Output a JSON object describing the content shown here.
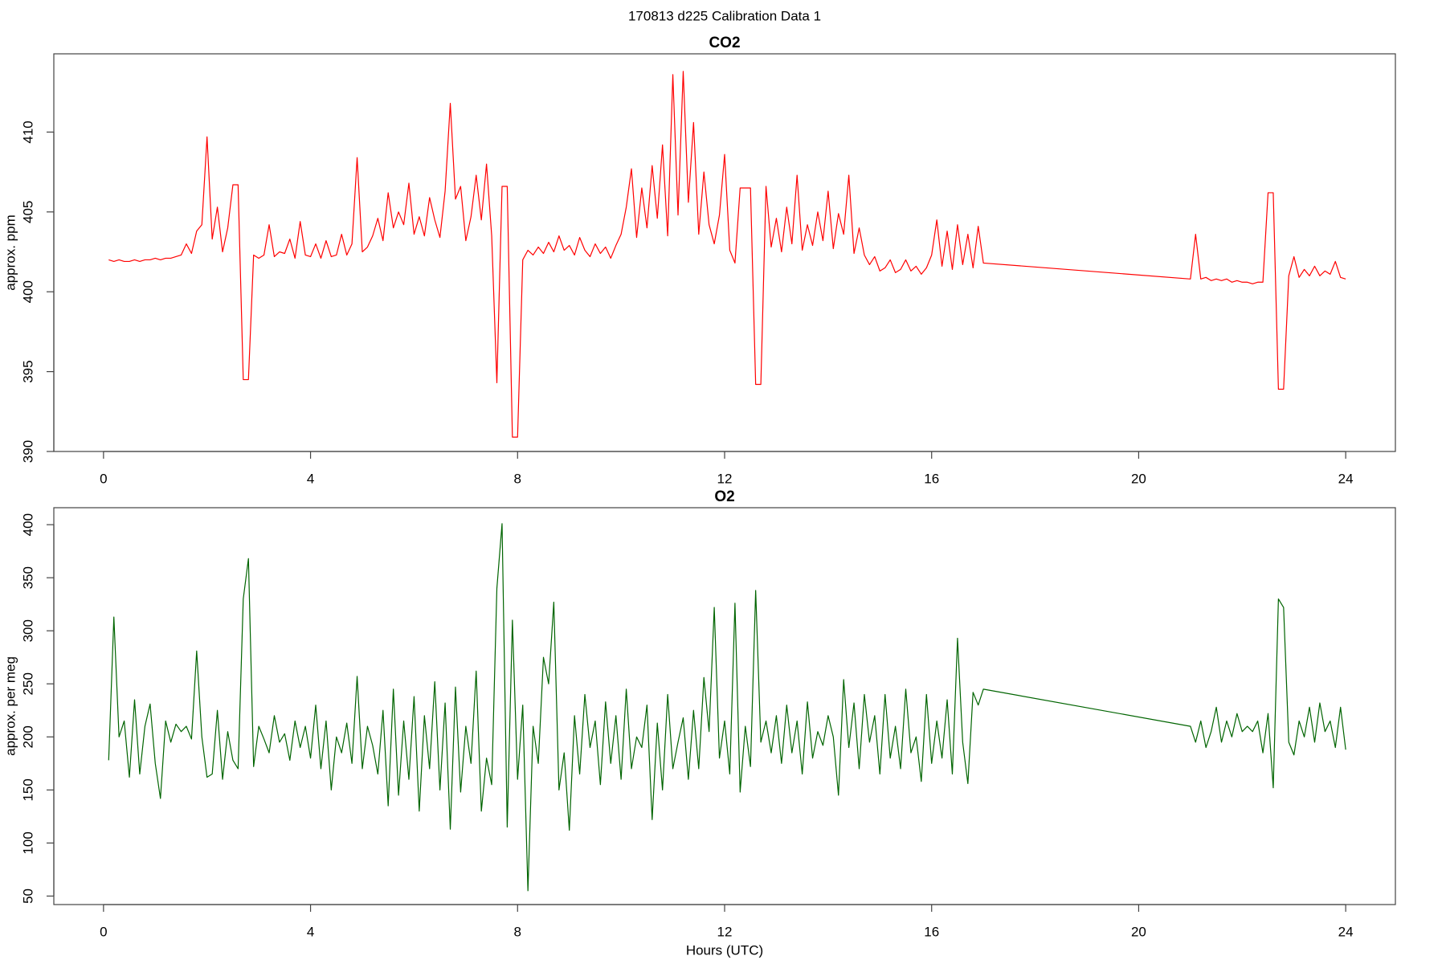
{
  "title": "170813   d225   Calibration Data 1",
  "chart_data": [
    {
      "type": "line",
      "title": "CO2",
      "ylabel": "approx. ppm",
      "color": "#ff0000",
      "xlim": [
        -0.96,
        24.96
      ],
      "xticks": [
        0,
        4,
        8,
        12,
        16,
        20,
        24
      ],
      "ylim": [
        390,
        414.9
      ],
      "yticks": [
        390,
        395,
        400,
        405,
        410
      ],
      "x": [
        0.1,
        0.2,
        0.3,
        0.4,
        0.5,
        0.6,
        0.7,
        0.8,
        0.9,
        1.0,
        1.1,
        1.2,
        1.3,
        1.4,
        1.5,
        1.6,
        1.7,
        1.8,
        1.9,
        2.0,
        2.1,
        2.2,
        2.3,
        2.4,
        2.5,
        2.6,
        2.7,
        2.8,
        2.9,
        3.0,
        3.1,
        3.2,
        3.3,
        3.4,
        3.5,
        3.6,
        3.7,
        3.8,
        3.9,
        4.0,
        4.1,
        4.2,
        4.3,
        4.4,
        4.5,
        4.6,
        4.7,
        4.8,
        4.9,
        5.0,
        5.1,
        5.2,
        5.3,
        5.4,
        5.5,
        5.6,
        5.7,
        5.8,
        5.9,
        6.0,
        6.1,
        6.2,
        6.3,
        6.4,
        6.5,
        6.6,
        6.7,
        6.8,
        6.9,
        7.0,
        7.1,
        7.2,
        7.3,
        7.4,
        7.5,
        7.6,
        7.7,
        7.8,
        7.9,
        8.0,
        8.1,
        8.2,
        8.3,
        8.4,
        8.5,
        8.6,
        8.7,
        8.8,
        8.9,
        9.0,
        9.1,
        9.2,
        9.3,
        9.4,
        9.5,
        9.6,
        9.7,
        9.8,
        9.9,
        10.0,
        10.1,
        10.2,
        10.3,
        10.4,
        10.5,
        10.6,
        10.7,
        10.8,
        10.9,
        11.0,
        11.1,
        11.2,
        11.3,
        11.4,
        11.5,
        11.6,
        11.7,
        11.8,
        11.9,
        12.0,
        12.1,
        12.2,
        12.3,
        12.4,
        12.5,
        12.6,
        12.7,
        12.8,
        12.9,
        13.0,
        13.1,
        13.2,
        13.3,
        13.4,
        13.5,
        13.6,
        13.7,
        13.8,
        13.9,
        14.0,
        14.1,
        14.2,
        14.3,
        14.4,
        14.5,
        14.6,
        14.7,
        14.8,
        14.9,
        15.0,
        15.1,
        15.2,
        15.3,
        15.4,
        15.5,
        15.6,
        15.7,
        15.8,
        15.9,
        16.0,
        16.1,
        16.2,
        16.3,
        16.4,
        16.5,
        16.6,
        16.7,
        16.8,
        16.9,
        17.0,
        21.0,
        21.1,
        21.2,
        21.3,
        21.4,
        21.5,
        21.6,
        21.7,
        21.8,
        21.9,
        22.0,
        22.1,
        22.2,
        22.3,
        22.4,
        22.5,
        22.6,
        22.7,
        22.8,
        22.9,
        23.0,
        23.1,
        23.2,
        23.3,
        23.4,
        23.5,
        23.6,
        23.7,
        23.8,
        23.9,
        24.0
      ],
      "values": [
        402.0,
        401.9,
        402.0,
        401.9,
        401.9,
        402.0,
        401.9,
        402.0,
        402.0,
        402.1,
        402.0,
        402.1,
        402.1,
        402.2,
        402.3,
        403.0,
        402.4,
        403.8,
        404.2,
        409.7,
        403.3,
        405.3,
        402.5,
        404.0,
        406.7,
        406.7,
        394.5,
        394.5,
        402.3,
        402.1,
        402.3,
        404.2,
        402.2,
        402.5,
        402.4,
        403.3,
        402.1,
        404.4,
        402.3,
        402.2,
        403.0,
        402.1,
        403.2,
        402.2,
        402.3,
        403.6,
        402.3,
        403.0,
        408.4,
        402.5,
        402.8,
        403.5,
        404.6,
        403.2,
        406.2,
        404.0,
        405.0,
        404.2,
        406.8,
        403.6,
        404.7,
        403.5,
        405.9,
        404.5,
        403.4,
        406.3,
        411.8,
        405.8,
        406.6,
        403.2,
        404.7,
        407.3,
        404.5,
        408.0,
        403.5,
        394.3,
        406.6,
        406.6,
        390.9,
        390.9,
        402.0,
        402.6,
        402.3,
        402.8,
        402.4,
        403.1,
        402.5,
        403.5,
        402.6,
        402.9,
        402.3,
        403.4,
        402.6,
        402.2,
        403.0,
        402.4,
        402.8,
        402.1,
        402.9,
        403.6,
        405.3,
        407.7,
        403.4,
        406.5,
        404.0,
        407.9,
        404.6,
        409.2,
        403.5,
        413.6,
        404.8,
        413.8,
        405.6,
        410.6,
        403.6,
        407.5,
        404.2,
        403.0,
        404.8,
        408.6,
        402.6,
        401.8,
        406.5,
        406.5,
        406.5,
        394.2,
        394.2,
        406.6,
        402.8,
        404.6,
        402.5,
        405.3,
        403.0,
        407.3,
        402.6,
        404.2,
        402.9,
        405.0,
        403.2,
        406.3,
        402.7,
        404.9,
        403.6,
        407.3,
        402.4,
        404.0,
        402.3,
        401.7,
        402.2,
        401.3,
        401.5,
        402.0,
        401.2,
        401.4,
        402.0,
        401.3,
        401.6,
        401.1,
        401.5,
        402.3,
        404.5,
        401.6,
        403.8,
        401.4,
        404.2,
        401.7,
        403.6,
        401.5,
        404.1,
        401.8,
        400.8,
        403.6,
        400.8,
        400.9,
        400.7,
        400.8,
        400.7,
        400.8,
        400.6,
        400.7,
        400.6,
        400.6,
        400.5,
        400.6,
        400.6,
        406.2,
        406.2,
        393.9,
        393.9,
        401.0,
        402.2,
        400.9,
        401.4,
        401.0,
        401.6,
        401.0,
        401.3,
        401.1,
        401.9,
        400.9,
        400.8
      ]
    },
    {
      "type": "line",
      "title": "O2",
      "ylabel": "approx. per meg",
      "xlabel": "Hours (UTC)",
      "color": "#006400",
      "xlim": [
        -0.96,
        24.96
      ],
      "xticks": [
        0,
        4,
        8,
        12,
        16,
        20,
        24
      ],
      "ylim": [
        42,
        416
      ],
      "yticks": [
        50,
        100,
        150,
        200,
        250,
        300,
        350,
        400
      ],
      "x": [
        0.1,
        0.2,
        0.3,
        0.4,
        0.5,
        0.6,
        0.7,
        0.8,
        0.9,
        1.0,
        1.1,
        1.2,
        1.3,
        1.4,
        1.5,
        1.6,
        1.7,
        1.8,
        1.9,
        2.0,
        2.1,
        2.2,
        2.3,
        2.4,
        2.5,
        2.6,
        2.7,
        2.8,
        2.9,
        3.0,
        3.1,
        3.2,
        3.3,
        3.4,
        3.5,
        3.6,
        3.7,
        3.8,
        3.9,
        4.0,
        4.1,
        4.2,
        4.3,
        4.4,
        4.5,
        4.6,
        4.7,
        4.8,
        4.9,
        5.0,
        5.1,
        5.2,
        5.3,
        5.4,
        5.5,
        5.6,
        5.7,
        5.8,
        5.9,
        6.0,
        6.1,
        6.2,
        6.3,
        6.4,
        6.5,
        6.6,
        6.7,
        6.8,
        6.9,
        7.0,
        7.1,
        7.2,
        7.3,
        7.4,
        7.5,
        7.6,
        7.7,
        7.8,
        7.9,
        8.0,
        8.1,
        8.2,
        8.3,
        8.4,
        8.5,
        8.6,
        8.7,
        8.8,
        8.9,
        9.0,
        9.1,
        9.2,
        9.3,
        9.4,
        9.5,
        9.6,
        9.7,
        9.8,
        9.9,
        10.0,
        10.1,
        10.2,
        10.3,
        10.4,
        10.5,
        10.6,
        10.7,
        10.8,
        10.9,
        11.0,
        11.1,
        11.2,
        11.3,
        11.4,
        11.5,
        11.6,
        11.7,
        11.8,
        11.9,
        12.0,
        12.1,
        12.2,
        12.3,
        12.4,
        12.5,
        12.6,
        12.7,
        12.8,
        12.9,
        13.0,
        13.1,
        13.2,
        13.3,
        13.4,
        13.5,
        13.6,
        13.7,
        13.8,
        13.9,
        14.0,
        14.1,
        14.2,
        14.3,
        14.4,
        14.5,
        14.6,
        14.7,
        14.8,
        14.9,
        15.0,
        15.1,
        15.2,
        15.3,
        15.4,
        15.5,
        15.6,
        15.7,
        15.8,
        15.9,
        16.0,
        16.1,
        16.2,
        16.3,
        16.4,
        16.5,
        16.6,
        16.7,
        16.8,
        16.9,
        17.0,
        21.0,
        21.1,
        21.2,
        21.3,
        21.4,
        21.5,
        21.6,
        21.7,
        21.8,
        21.9,
        22.0,
        22.1,
        22.2,
        22.3,
        22.4,
        22.5,
        22.6,
        22.7,
        22.8,
        22.9,
        23.0,
        23.1,
        23.2,
        23.3,
        23.4,
        23.5,
        23.6,
        23.7,
        23.8,
        23.9,
        24.0
      ],
      "values": [
        178,
        313,
        200,
        215,
        162,
        235,
        165,
        210,
        231,
        175,
        142,
        215,
        195,
        212,
        205,
        210,
        198,
        281,
        200,
        162,
        165,
        225,
        160,
        205,
        178,
        170,
        330,
        368,
        172,
        210,
        198,
        185,
        220,
        195,
        203,
        178,
        215,
        190,
        210,
        180,
        230,
        170,
        215,
        150,
        200,
        185,
        213,
        175,
        257,
        170,
        210,
        192,
        165,
        225,
        135,
        245,
        145,
        215,
        160,
        238,
        130,
        220,
        170,
        252,
        150,
        232,
        113,
        247,
        148,
        210,
        175,
        262,
        130,
        180,
        155,
        340,
        401,
        115,
        310,
        160,
        230,
        55,
        210,
        175,
        275,
        250,
        327,
        150,
        185,
        112,
        220,
        165,
        240,
        190,
        215,
        155,
        233,
        175,
        220,
        160,
        245,
        170,
        200,
        190,
        230,
        122,
        213,
        150,
        240,
        170,
        195,
        218,
        160,
        225,
        170,
        256,
        205,
        322,
        180,
        215,
        165,
        326,
        148,
        210,
        172,
        338,
        195,
        215,
        185,
        220,
        175,
        230,
        185,
        215,
        165,
        233,
        180,
        205,
        192,
        220,
        200,
        145,
        254,
        190,
        232,
        170,
        240,
        195,
        220,
        165,
        240,
        180,
        210,
        170,
        245,
        185,
        200,
        158,
        240,
        175,
        215,
        180,
        235,
        165,
        293,
        195,
        156,
        242,
        230,
        245,
        210,
        195,
        215,
        190,
        205,
        228,
        195,
        215,
        200,
        222,
        205,
        210,
        205,
        215,
        185,
        222,
        152,
        330,
        322,
        195,
        183,
        215,
        200,
        228,
        195,
        232,
        205,
        215,
        190,
        228,
        188
      ]
    }
  ]
}
